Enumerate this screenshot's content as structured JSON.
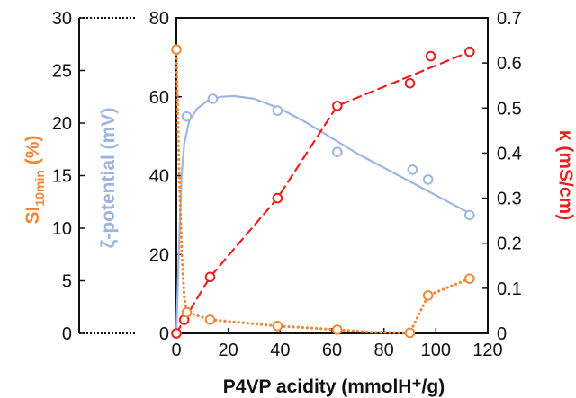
{
  "chart_data": {
    "type": "scatter",
    "xlabel": "P4VP acidity (mmolH⁺/g)",
    "x_ticks": [
      "0",
      "20",
      "40",
      "60",
      "80",
      "100",
      "120"
    ],
    "xlim": [
      0,
      120
    ],
    "axes": {
      "si": {
        "label_main": "SI",
        "label_sub": "10min",
        "label_unit": " (%)",
        "ticks": [
          "0",
          "5",
          "10",
          "15",
          "20",
          "25",
          "30"
        ],
        "ylim": [
          0,
          30
        ],
        "color": "#f0883a"
      },
      "zeta": {
        "label": "ζ-potential (mV)",
        "ticks": [
          "0",
          "20",
          "40",
          "60",
          "80"
        ],
        "ylim": [
          0,
          80
        ],
        "color": "#9db5e0"
      },
      "kappa": {
        "label": "κ (mS/cm)",
        "ticks": [
          "0",
          "0.1",
          "0.2",
          "0.3",
          "0.4",
          "0.5",
          "0.6",
          "0.7"
        ],
        "ylim": [
          0,
          0.7
        ],
        "color": "#e82020"
      }
    },
    "series": [
      {
        "axis": "zeta",
        "color": "#9db5e0",
        "line": "solid-smooth",
        "points": [
          [
            0,
            0
          ],
          [
            4,
            55
          ],
          [
            14,
            59.5
          ],
          [
            39,
            56.5
          ],
          [
            62,
            46
          ],
          [
            91,
            41.5
          ],
          [
            97,
            39
          ],
          [
            113,
            30
          ]
        ],
        "fit": [
          [
            0,
            0
          ],
          [
            1,
            22
          ],
          [
            2,
            40
          ],
          [
            3,
            48
          ],
          [
            5,
            54
          ],
          [
            8,
            57
          ],
          [
            12,
            59
          ],
          [
            17,
            60
          ],
          [
            22,
            60.2
          ],
          [
            30,
            59.5
          ],
          [
            40,
            57
          ],
          [
            50,
            53.5
          ],
          [
            60,
            49.5
          ],
          [
            70,
            45.5
          ],
          [
            80,
            42
          ],
          [
            90,
            38.5
          ],
          [
            100,
            35
          ],
          [
            110,
            31.5
          ],
          [
            113,
            30.5
          ]
        ]
      },
      {
        "axis": "kappa",
        "color": "#e82020",
        "line": "dashed",
        "points": [
          [
            0,
            0
          ],
          [
            3,
            0.03
          ],
          [
            13,
            0.125
          ],
          [
            39,
            0.3
          ],
          [
            62,
            0.505
          ],
          [
            90,
            0.555
          ],
          [
            98,
            0.615
          ],
          [
            113,
            0.625
          ]
        ],
        "fit": [
          [
            0,
            0
          ],
          [
            3,
            0.03
          ],
          [
            13,
            0.125
          ],
          [
            39,
            0.3
          ],
          [
            62,
            0.505
          ],
          [
            113,
            0.625
          ]
        ]
      },
      {
        "axis": "si",
        "color": "#f0883a",
        "line": "dotted",
        "points": [
          [
            0,
            27
          ],
          [
            4,
            2
          ],
          [
            13,
            1.3
          ],
          [
            39,
            0.7
          ],
          [
            62,
            0.35
          ],
          [
            90,
            0.05
          ],
          [
            97,
            3.6
          ],
          [
            113,
            5.2
          ]
        ],
        "fit": [
          [
            0,
            27
          ],
          [
            1,
            16
          ],
          [
            2,
            8
          ],
          [
            3,
            3.5
          ],
          [
            4,
            2
          ],
          [
            13,
            1.3
          ],
          [
            39,
            0.7
          ],
          [
            62,
            0.35
          ],
          [
            75,
            0.1
          ],
          [
            90,
            0.05
          ],
          [
            97,
            3.6
          ],
          [
            113,
            5.2
          ]
        ]
      }
    ]
  }
}
